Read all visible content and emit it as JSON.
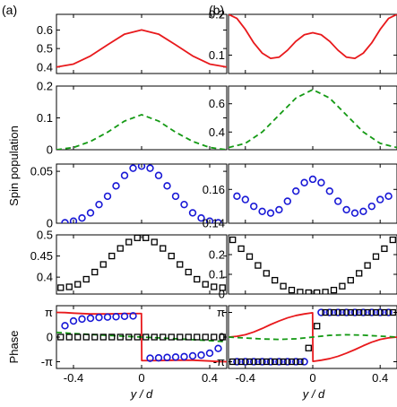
{
  "figure": {
    "panel_labels": [
      "(a)",
      "(b)"
    ],
    "ylabel_spin": "Spin population",
    "ylabel_phase": "Phase",
    "xlabel": "y / d",
    "xticks": [
      "-0.4",
      "0",
      "0.4"
    ]
  },
  "chart_data": [
    {
      "panel": "a",
      "row": 1,
      "type": "line",
      "xlim": [
        -0.5,
        0.5
      ],
      "ylim": [
        0.365,
        0.685
      ],
      "yticks": [
        {
          "v": 0.4,
          "label": "0.4"
        },
        {
          "v": 0.5,
          "label": "0.5"
        },
        {
          "v": 0.6,
          "label": "0.6"
        }
      ],
      "series": [
        {
          "style": "solid",
          "color": "#e8191c",
          "x": [
            -0.5,
            -0.4,
            -0.3,
            -0.2,
            -0.1,
            0,
            0.1,
            0.2,
            0.3,
            0.4,
            0.5
          ],
          "y": [
            0.4,
            0.416,
            0.46,
            0.52,
            0.578,
            0.601,
            0.578,
            0.52,
            0.46,
            0.416,
            0.4
          ]
        }
      ]
    },
    {
      "panel": "a",
      "row": 2,
      "type": "line",
      "xlim": [
        -0.5,
        0.5
      ],
      "ylim": [
        0,
        0.2
      ],
      "yticks": [
        {
          "v": 0,
          "label": "0"
        },
        {
          "v": 0.1,
          "label": "0.1"
        },
        {
          "v": 0.2,
          "label": "0.2"
        }
      ],
      "series": [
        {
          "style": "dashed",
          "color": "#159a15",
          "x": [
            -0.5,
            -0.4,
            -0.3,
            -0.2,
            -0.1,
            0,
            0.1,
            0.2,
            0.3,
            0.4,
            0.5
          ],
          "y": [
            0.0,
            0.007,
            0.026,
            0.055,
            0.09,
            0.11,
            0.09,
            0.055,
            0.026,
            0.007,
            0.0
          ]
        }
      ]
    },
    {
      "panel": "a",
      "row": 3,
      "type": "scatter",
      "xlim": [
        -0.5,
        0.5
      ],
      "ylim": [
        0,
        0.057
      ],
      "yticks": [
        {
          "v": 0,
          "label": "0"
        },
        {
          "v": 0.05,
          "label": "0.05"
        }
      ],
      "series": [
        {
          "marker": "circle",
          "color": "#1818d6",
          "x": [
            -0.45,
            -0.4,
            -0.35,
            -0.3,
            -0.25,
            -0.2,
            -0.15,
            -0.1,
            -0.05,
            0,
            0.05,
            0.1,
            0.15,
            0.2,
            0.25,
            0.3,
            0.35,
            0.4,
            0.45
          ],
          "y": [
            0.0005,
            0.002,
            0.005,
            0.01,
            0.018,
            0.026,
            0.036,
            0.046,
            0.053,
            0.055,
            0.053,
            0.046,
            0.036,
            0.026,
            0.018,
            0.01,
            0.005,
            0.002,
            0.0005
          ]
        }
      ]
    },
    {
      "panel": "a",
      "row": 4,
      "type": "scatter",
      "xlim": [
        -0.5,
        0.5
      ],
      "ylim": [
        0.36,
        0.5
      ],
      "yticks": [
        {
          "v": 0.4,
          "label": "0.4"
        },
        {
          "v": 0.45,
          "label": "0.45"
        },
        {
          "v": 0.5,
          "label": "0.5"
        }
      ],
      "series": [
        {
          "marker": "square",
          "color": "#000000",
          "x": [
            -0.475,
            -0.425,
            -0.375,
            -0.325,
            -0.275,
            -0.225,
            -0.175,
            -0.125,
            -0.075,
            -0.025,
            0.025,
            0.075,
            0.125,
            0.175,
            0.225,
            0.275,
            0.325,
            0.375,
            0.425,
            0.475
          ],
          "y": [
            0.375,
            0.377,
            0.383,
            0.395,
            0.412,
            0.43,
            0.45,
            0.468,
            0.483,
            0.493,
            0.493,
            0.483,
            0.468,
            0.45,
            0.43,
            0.412,
            0.395,
            0.383,
            0.377,
            0.375
          ]
        }
      ]
    },
    {
      "panel": "a",
      "row": 5,
      "type": "line",
      "xlim": [
        -0.5,
        0.5
      ],
      "ylim": [
        -4.0,
        4.0
      ],
      "yticks": [
        {
          "v": 3.1416,
          "label": "π"
        },
        {
          "v": 0,
          "label": "0"
        },
        {
          "v": -3.1416,
          "label": "-π"
        }
      ],
      "series": [
        {
          "style": "solid",
          "color": "#e8191c",
          "x": [
            -0.5,
            -0.45,
            -0.4,
            -0.3,
            -0.2,
            -0.1,
            -0.001,
            0.001,
            0.1,
            0.2,
            0.3,
            0.4,
            0.45,
            0.5
          ],
          "y": [
            3.14,
            3.12,
            3.05,
            2.95,
            2.95,
            3.0,
            3.0,
            -3.0,
            -3.0,
            -2.95,
            -2.95,
            -3.05,
            -3.12,
            -3.14
          ]
        },
        {
          "style": "dashed",
          "color": "#159a15",
          "x": [
            -0.5,
            -0.4,
            -0.3,
            -0.2,
            -0.1,
            0,
            0.1,
            0.2,
            0.3,
            0.4,
            0.5
          ],
          "y": [
            0.6,
            0.45,
            0.33,
            0.22,
            0.1,
            0,
            -0.1,
            -0.22,
            -0.33,
            -0.45,
            -0.6
          ]
        },
        {
          "marker": "circle",
          "color": "#1818d6",
          "x": [
            -0.45,
            -0.4,
            -0.35,
            -0.3,
            -0.25,
            -0.2,
            -0.15,
            -0.1,
            -0.05,
            0.05,
            0.1,
            0.15,
            0.2,
            0.25,
            0.3,
            0.35,
            0.4,
            0.45
          ],
          "y": [
            1.45,
            2.05,
            2.3,
            2.4,
            2.5,
            2.55,
            2.6,
            2.65,
            2.7,
            -2.7,
            -2.65,
            -2.6,
            -2.55,
            -2.5,
            -2.4,
            -2.3,
            -2.05,
            -1.45
          ]
        },
        {
          "marker": "square",
          "color": "#000000",
          "x": [
            -0.475,
            -0.425,
            -0.375,
            -0.325,
            -0.275,
            -0.225,
            -0.175,
            -0.125,
            -0.075,
            -0.025,
            0.025,
            0.075,
            0.125,
            0.175,
            0.225,
            0.275,
            0.325,
            0.375,
            0.425,
            0.475
          ],
          "y": [
            0,
            0,
            0,
            0,
            0,
            0,
            0,
            0,
            0,
            0,
            0,
            0,
            0,
            0,
            0,
            0,
            0,
            0,
            0,
            0
          ]
        }
      ]
    },
    {
      "panel": "b",
      "row": 1,
      "type": "line",
      "xlim": [
        -0.5,
        0.5
      ],
      "ylim": [
        0.055,
        0.2
      ],
      "yticks": [
        {
          "v": 0.1,
          "label": "0.1"
        },
        {
          "v": 0.2,
          "label": "0.2"
        }
      ],
      "series": [
        {
          "style": "solid",
          "color": "#e8191c",
          "x": [
            -0.5,
            -0.45,
            -0.4,
            -0.35,
            -0.3,
            -0.25,
            -0.2,
            -0.15,
            -0.1,
            -0.05,
            0,
            0.05,
            0.1,
            0.15,
            0.2,
            0.25,
            0.3,
            0.35,
            0.4,
            0.45,
            0.5
          ],
          "y": [
            0.2,
            0.19,
            0.163,
            0.13,
            0.105,
            0.092,
            0.095,
            0.112,
            0.134,
            0.15,
            0.155,
            0.15,
            0.134,
            0.112,
            0.095,
            0.092,
            0.105,
            0.13,
            0.163,
            0.19,
            0.2
          ]
        }
      ]
    },
    {
      "panel": "b",
      "row": 2,
      "type": "line",
      "xlim": [
        -0.5,
        0.5
      ],
      "ylim": [
        0.275,
        0.725
      ],
      "yticks": [
        {
          "v": 0.4,
          "label": "0.4"
        },
        {
          "v": 0.6,
          "label": "0.6"
        }
      ],
      "series": [
        {
          "style": "dashed",
          "color": "#159a15",
          "x": [
            -0.5,
            -0.4,
            -0.3,
            -0.2,
            -0.1,
            0,
            0.1,
            0.2,
            0.3,
            0.4,
            0.5
          ],
          "y": [
            0.29,
            0.32,
            0.4,
            0.52,
            0.64,
            0.7,
            0.64,
            0.52,
            0.4,
            0.32,
            0.29
          ]
        }
      ]
    },
    {
      "panel": "b",
      "row": 3,
      "type": "scatter",
      "xlim": [
        -0.5,
        0.5
      ],
      "ylim": [
        0.14,
        0.175
      ],
      "yticks": [
        {
          "v": 0.14,
          "label": "0.14"
        },
        {
          "v": 0.16,
          "label": "0.16"
        }
      ],
      "series": [
        {
          "marker": "circle",
          "color": "#1818d6",
          "x": [
            -0.45,
            -0.4,
            -0.35,
            -0.3,
            -0.25,
            -0.2,
            -0.15,
            -0.1,
            -0.05,
            0,
            0.05,
            0.1,
            0.15,
            0.2,
            0.25,
            0.3,
            0.35,
            0.4,
            0.45
          ],
          "y": [
            0.156,
            0.154,
            0.15,
            0.147,
            0.146,
            0.148,
            0.153,
            0.159,
            0.164,
            0.166,
            0.164,
            0.159,
            0.153,
            0.148,
            0.146,
            0.147,
            0.15,
            0.154,
            0.156
          ]
        }
      ]
    },
    {
      "panel": "b",
      "row": 4,
      "type": "scatter",
      "xlim": [
        -0.5,
        0.5
      ],
      "ylim": [
        0,
        0.3
      ],
      "yticks": [
        {
          "v": 0,
          "label": "0"
        },
        {
          "v": 0.1,
          "label": "0.1"
        },
        {
          "v": 0.2,
          "label": "0.2"
        }
      ],
      "series": [
        {
          "marker": "square",
          "color": "#000000",
          "x": [
            -0.475,
            -0.425,
            -0.375,
            -0.325,
            -0.275,
            -0.225,
            -0.175,
            -0.125,
            -0.075,
            -0.025,
            0.025,
            0.075,
            0.125,
            0.175,
            0.225,
            0.275,
            0.325,
            0.375,
            0.425,
            0.475
          ],
          "y": [
            0.275,
            0.23,
            0.19,
            0.145,
            0.105,
            0.07,
            0.04,
            0.02,
            0.01,
            0.007,
            0.007,
            0.01,
            0.02,
            0.04,
            0.07,
            0.105,
            0.145,
            0.19,
            0.23,
            0.275
          ]
        }
      ]
    },
    {
      "panel": "b",
      "row": 5,
      "type": "line",
      "xlim": [
        -0.5,
        0.5
      ],
      "ylim": [
        -4.0,
        4.0
      ],
      "yticks": [
        {
          "v": 3.1416,
          "label": "π"
        },
        {
          "v": 0,
          "label": "0"
        },
        {
          "v": -3.1416,
          "label": "-π"
        }
      ],
      "series": [
        {
          "style": "solid",
          "color": "#e8191c",
          "x": [
            -0.5,
            -0.45,
            -0.4,
            -0.35,
            -0.3,
            -0.25,
            -0.2,
            -0.15,
            -0.1,
            -0.05,
            -0.001,
            0.001,
            0.05,
            0.1,
            0.15,
            0.2,
            0.25,
            0.3,
            0.35,
            0.4,
            0.45,
            0.5
          ],
          "y": [
            0.0,
            0.1,
            0.3,
            0.65,
            1.1,
            1.6,
            2.05,
            2.45,
            2.75,
            2.95,
            3.1,
            -3.1,
            -2.95,
            -2.75,
            -2.45,
            -2.05,
            -1.6,
            -1.1,
            -0.65,
            -0.3,
            -0.1,
            0.0
          ]
        },
        {
          "style": "dashed",
          "color": "#159a15",
          "x": [
            -0.5,
            -0.4,
            -0.3,
            -0.2,
            -0.1,
            0,
            0.1,
            0.2,
            0.3,
            0.4,
            0.5
          ],
          "y": [
            0.0,
            -0.12,
            -0.24,
            -0.3,
            -0.22,
            0.0,
            0.22,
            0.3,
            0.24,
            0.12,
            0.0
          ]
        },
        {
          "marker": "circle",
          "color": "#1818d6",
          "x": [
            -0.45,
            -0.4,
            -0.35,
            -0.3,
            -0.25,
            -0.2,
            -0.15,
            -0.1,
            -0.05,
            0.05,
            0.1,
            0.15,
            0.2,
            0.25,
            0.3,
            0.35,
            0.4,
            0.45
          ],
          "y": [
            -3.14,
            -3.14,
            -3.14,
            -3.14,
            -3.14,
            -3.14,
            -3.14,
            -3.14,
            -3.14,
            3.14,
            3.14,
            3.14,
            3.14,
            3.14,
            3.14,
            3.14,
            3.14,
            3.14
          ]
        },
        {
          "marker": "square",
          "color": "#000000",
          "x": [
            -0.475,
            -0.425,
            -0.375,
            -0.325,
            -0.275,
            -0.225,
            -0.175,
            -0.125,
            -0.075,
            -0.025,
            0.025,
            0.075,
            0.125,
            0.175,
            0.225,
            0.275,
            0.325,
            0.375,
            0.425,
            0.475
          ],
          "y": [
            -3.14,
            -3.14,
            -3.14,
            -3.14,
            -3.14,
            -3.14,
            -3.14,
            -3.14,
            -3.14,
            -1.4,
            1.4,
            3.14,
            3.14,
            3.14,
            3.14,
            3.14,
            3.14,
            3.14,
            3.14,
            3.14
          ]
        }
      ]
    }
  ]
}
